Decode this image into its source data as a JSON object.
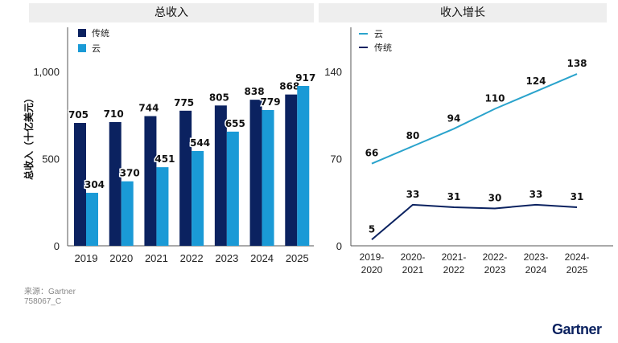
{
  "left_panel": {
    "header": "总收入",
    "chart_data": {
      "type": "bar",
      "categories": [
        "2019",
        "2020",
        "2021",
        "2022",
        "2023",
        "2024",
        "2025"
      ],
      "series": [
        {
          "name": "传统",
          "values": [
            705,
            710,
            744,
            775,
            805,
            838,
            868
          ]
        },
        {
          "name": "云",
          "values": [
            304,
            370,
            451,
            544,
            655,
            779,
            917
          ]
        }
      ],
      "ylabel": "总收入（十亿美元）",
      "ylim": [
        0,
        1250
      ],
      "yticks": [
        0,
        500,
        1000
      ],
      "ytick_labels": [
        "0",
        "500",
        "1,000"
      ],
      "legend_position": "top-left",
      "grid": false
    }
  },
  "right_panel": {
    "header": "收入增长",
    "chart_data": {
      "type": "line",
      "categories": [
        "2019-2020",
        "2020-2021",
        "2021-2022",
        "2022-2023",
        "2023-2024",
        "2024-2025"
      ],
      "category_lines": [
        [
          "2019-",
          "2020"
        ],
        [
          "2020-",
          "2021"
        ],
        [
          "2021-",
          "2022"
        ],
        [
          "2022-",
          "2023"
        ],
        [
          "2023-",
          "2024"
        ],
        [
          "2024-",
          "2025"
        ]
      ],
      "series": [
        {
          "name": "云",
          "values": [
            66,
            80,
            94,
            110,
            124,
            138
          ]
        },
        {
          "name": "传统",
          "values": [
            5,
            33,
            31,
            30,
            33,
            31
          ]
        }
      ],
      "ylim": [
        0,
        160
      ],
      "yticks": [
        0,
        70,
        140
      ],
      "legend_position": "top-left",
      "grid": false
    }
  },
  "colors": {
    "traditional": "#0b2260",
    "cloud": "#1a9ad6",
    "cloud_line": "#2aa3cc"
  },
  "footer": {
    "source": "来源：Gartner",
    "doc_id": "758067_C",
    "logo_text": "Gartner"
  }
}
